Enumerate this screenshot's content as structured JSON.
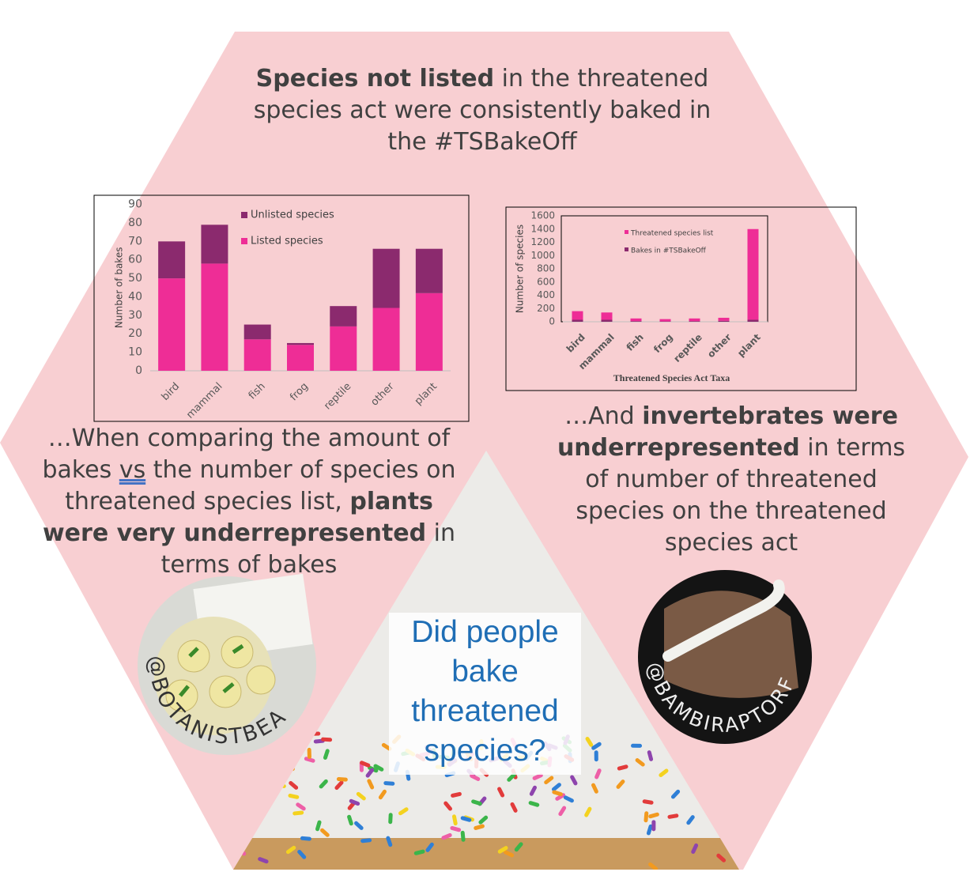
{
  "texts": {
    "top": [
      "Species not listed",
      " in the threatened species act were consistently baked in the #TSBakeOff"
    ],
    "left": [
      "…When comparing the amount of bakes ",
      "vs",
      " the number of species on threatened species list, ",
      "plants were very underrepresented",
      " in terms of bakes"
    ],
    "right": [
      "…And ",
      "invertebrates were underrepresented",
      " in terms of number of threatened species on the threatened species act"
    ],
    "center": "Did people bake threatened species?",
    "handle_left": "@BOTANISTBEA",
    "handle_right": "@BAMBIRAPTORF"
  },
  "chart_data": [
    {
      "type": "bar",
      "stacked": true,
      "categories": [
        "bird",
        "mammal",
        "fish",
        "frog",
        "reptile",
        "other",
        "plant"
      ],
      "series": [
        {
          "name": "Listed species",
          "color": "#ee2d96",
          "values": [
            50,
            58,
            17,
            14,
            24,
            34,
            42
          ]
        },
        {
          "name": "Unlisted species",
          "color": "#8b2a6e",
          "values": [
            20,
            21,
            8,
            1,
            11,
            32,
            24
          ]
        }
      ],
      "y_label": "Number of bakes",
      "ylim": [
        0,
        90
      ],
      "yticks": [
        0,
        10,
        20,
        30,
        40,
        50,
        60,
        70,
        80,
        90
      ]
    },
    {
      "type": "bar",
      "stacked": true,
      "categories": [
        "bird",
        "mammal",
        "fish",
        "frog",
        "reptile",
        "other",
        "plant"
      ],
      "series": [
        {
          "name": "Bakes in #TSBakeOff",
          "color": "#8b2a6e",
          "values": [
            30,
            30,
            10,
            5,
            10,
            15,
            30
          ]
        },
        {
          "name": "Threatened species list",
          "color": "#ee2d96",
          "values": [
            130,
            110,
            40,
            35,
            40,
            45,
            1370
          ]
        }
      ],
      "x_label": "Threatened Species Act Taxa",
      "y_label": "Number of species",
      "ylim": [
        0,
        1600
      ],
      "yticks": [
        0,
        200,
        400,
        600,
        800,
        1000,
        1200,
        1400,
        1600
      ]
    }
  ]
}
